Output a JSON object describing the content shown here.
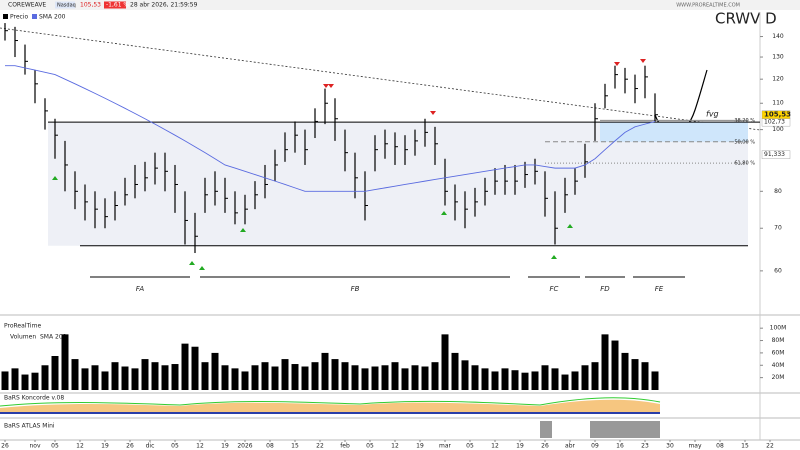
{
  "header": {
    "symbol": "COREWEAVE",
    "exchange": "Nasdaq",
    "price": "105,53",
    "change": "-1,61 %",
    "datetime": "28 abr 2026, 21:59:59",
    "site": "WWW.PROREALTIME.COM",
    "ticker": "CRWV  D"
  },
  "chart_data": {
    "type": "ohlc",
    "log_scale": true,
    "ylim": [
      54,
      153
    ],
    "yticks": [
      60,
      70,
      80,
      100,
      110,
      120,
      130,
      140
    ],
    "xticks": [
      {
        "value": 0,
        "label": "26"
      },
      {
        "value": 3,
        "label": "nov"
      },
      {
        "value": 5,
        "label": "05"
      },
      {
        "value": 7.5,
        "label": "12"
      },
      {
        "value": 10,
        "label": "19"
      },
      {
        "value": 12.5,
        "label": "26"
      },
      {
        "value": 14.5,
        "label": "dic"
      },
      {
        "value": 17,
        "label": "05"
      },
      {
        "value": 19.5,
        "label": "12"
      },
      {
        "value": 22,
        "label": "19"
      },
      {
        "value": 24,
        "label": "2026"
      },
      {
        "value": 26.5,
        "label": "08"
      },
      {
        "value": 29,
        "label": "15"
      },
      {
        "value": 31.5,
        "label": "22"
      },
      {
        "value": 34,
        "label": "feb"
      },
      {
        "value": 36.5,
        "label": "05"
      },
      {
        "value": 39,
        "label": "12"
      },
      {
        "value": 41.5,
        "label": "19"
      },
      {
        "value": 44,
        "label": "mar"
      },
      {
        "value": 46.5,
        "label": "05"
      },
      {
        "value": 49,
        "label": "12"
      },
      {
        "value": 51.5,
        "label": "19"
      },
      {
        "value": 54,
        "label": "26"
      },
      {
        "value": 56.5,
        "label": "abr"
      },
      {
        "value": 59,
        "label": "09"
      },
      {
        "value": 61.5,
        "label": "16"
      },
      {
        "value": 64,
        "label": "23"
      },
      {
        "value": 66.5,
        "label": "30"
      },
      {
        "value": 69,
        "label": "may"
      },
      {
        "value": 71.5,
        "label": "08"
      },
      {
        "value": 74,
        "label": "15"
      },
      {
        "value": 76.5,
        "label": "22"
      }
    ],
    "series": [
      {
        "name": "Precio",
        "color": "#000000",
        "high": [
          147,
          145,
          136,
          124,
          112,
          104,
          96,
          86,
          82,
          80,
          78,
          80,
          84,
          88,
          89,
          92,
          92,
          88,
          80,
          74,
          84,
          86,
          84,
          80,
          79,
          83,
          88,
          93,
          99,
          103,
          100,
          108,
          116,
          112,
          100,
          92,
          86,
          98,
          100,
          99,
          98,
          100,
          104,
          101,
          90,
          82,
          80,
          81,
          84,
          87,
          88,
          88,
          89,
          90,
          86,
          80,
          84,
          87,
          95,
          110,
          118,
          126,
          125,
          122,
          126,
          114
        ],
        "low": [
          138,
          130,
          122,
          110,
          100,
          90,
          80,
          75,
          72,
          70,
          70,
          72,
          76,
          78,
          80,
          82,
          80,
          74,
          66,
          64,
          74,
          76,
          74,
          71,
          71,
          75,
          78,
          83,
          89,
          92,
          88,
          97,
          102,
          96,
          86,
          78,
          72,
          86,
          90,
          88,
          88,
          91,
          94,
          88,
          76,
          72,
          70,
          73,
          76,
          79,
          79,
          79,
          81,
          82,
          73,
          66,
          74,
          79,
          84,
          96,
          108,
          116,
          114,
          110,
          112,
          103
        ],
        "close": [
          143,
          138,
          128,
          118,
          107,
          98,
          88,
          80,
          77,
          75,
          73,
          76,
          79,
          82,
          84,
          87,
          86,
          82,
          72,
          68,
          79,
          80,
          78,
          74,
          75,
          79,
          82,
          88,
          93,
          98,
          93,
          103,
          110,
          104,
          92,
          84,
          76,
          93,
          95,
          94,
          93,
          96,
          99,
          95,
          80,
          77,
          75,
          77,
          80,
          83,
          83,
          83,
          85,
          86,
          78,
          70,
          79,
          83,
          89,
          104,
          113,
          122,
          120,
          116,
          121,
          105.53
        ]
      },
      {
        "name": "SMA 200",
        "color": "#5a6be0",
        "values": [
          126,
          126,
          125,
          124,
          123,
          122,
          120,
          118,
          116,
          114,
          112,
          110,
          108,
          106,
          104,
          102,
          100,
          98,
          96,
          94,
          92,
          90,
          88,
          87,
          86,
          85,
          84,
          83,
          82,
          81,
          80,
          80,
          80,
          80,
          80,
          80,
          80,
          80.5,
          81,
          81.5,
          82,
          82.5,
          83,
          83.5,
          84,
          84.5,
          85,
          85.5,
          86,
          86.5,
          87,
          87.5,
          88,
          88,
          87.5,
          87,
          87,
          87,
          88,
          90,
          93,
          96,
          99,
          101,
          102,
          103
        ]
      }
    ],
    "range_low": 65.7,
    "fib_levels": [
      {
        "name": "38,20 %",
        "value": 103.4
      },
      {
        "name": "50,00 %",
        "value": 95.7
      },
      {
        "name": "61,80 %",
        "value": 88.6
      }
    ],
    "price_tags": [
      {
        "value": 102.73,
        "label": "102,73"
      },
      {
        "value": 91.333,
        "label": "91,333"
      },
      {
        "value": 105.53,
        "label": "105,53"
      }
    ],
    "fvg_label": "fvg",
    "phases": [
      {
        "label": "FA",
        "from": 8.5,
        "to": 18.5
      },
      {
        "label": "FB",
        "from": 19.5,
        "to": 50.5
      },
      {
        "label": "FC",
        "from": 52.3,
        "to": 57.5
      },
      {
        "label": "FD",
        "from": 58,
        "to": 62
      },
      {
        "label": "FE",
        "from": 62.8,
        "to": 68
      }
    ],
    "volume": {
      "panel": "ProRealTime",
      "name": "Volumen",
      "sma_name": "SMA 200",
      "color": "#000000",
      "ylim": [
        0,
        110
      ],
      "yticks": [
        {
          "value": 20,
          "label": "20M"
        },
        {
          "value": 40,
          "label": "40M"
        },
        {
          "value": 60,
          "label": "60M"
        },
        {
          "value": 80,
          "label": "80M"
        },
        {
          "value": 100,
          "label": "100M"
        }
      ],
      "values": [
        30,
        35,
        25,
        28,
        40,
        55,
        90,
        50,
        35,
        40,
        30,
        45,
        38,
        35,
        50,
        45,
        40,
        42,
        75,
        70,
        45,
        60,
        40,
        35,
        30,
        40,
        45,
        38,
        50,
        42,
        38,
        45,
        60,
        50,
        45,
        40,
        35,
        38,
        40,
        45,
        35,
        40,
        38,
        45,
        90,
        60,
        48,
        40,
        35,
        30,
        35,
        32,
        28,
        30,
        40,
        35,
        25,
        30,
        40,
        45,
        90,
        80,
        60,
        50,
        45,
        30
      ]
    },
    "koncorde": "BaRS Koncorde v.08",
    "atlas": "BaRS ATLAS Mini"
  }
}
